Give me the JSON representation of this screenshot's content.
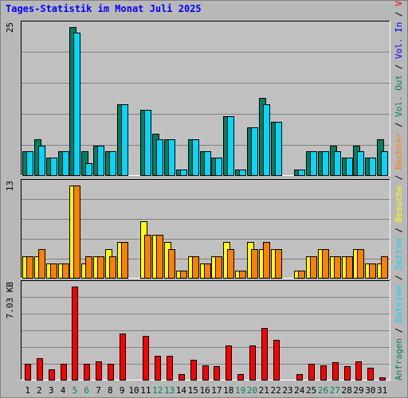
{
  "title": "Tages-Statistik im Monat Juli 2025",
  "colors": {
    "background": "#b8b8b8",
    "plot_background": "#c0c0c0",
    "title": "#0000ff",
    "grid": "#808080",
    "anfragen": "#008060",
    "dateien": "#00d8ff",
    "besuche": "#ffff00",
    "rechner": "#ff8000",
    "volumen": "#ff0000",
    "weekend_label": "#008060"
  },
  "legend_right": [
    {
      "text": "Anfragen",
      "color": "#008060"
    },
    {
      "text": "/",
      "color": "#000000"
    },
    {
      "text": "Dateien",
      "color": "#00d8ff"
    },
    {
      "text": "/",
      "color": "#000000"
    },
    {
      "text": "Seiten",
      "color": "#00d8ff"
    },
    {
      "text": "/",
      "color": "#000000"
    },
    {
      "text": "Besuche",
      "color": "#ffff00"
    },
    {
      "text": "/",
      "color": "#000000"
    },
    {
      "text": "Rechner",
      "color": "#ff8000"
    },
    {
      "text": "/",
      "color": "#000000"
    },
    {
      "text": "Vol. Out",
      "color": "#008060"
    },
    {
      "text": "/",
      "color": "#000000"
    },
    {
      "text": "Vol. In",
      "color": "#0000ff"
    },
    {
      "text": "/",
      "color": "#000000"
    },
    {
      "text": "Volumen",
      "color": "#ff0000"
    }
  ],
  "chart_data": {
    "type": "bar",
    "categories": [
      "1",
      "2",
      "3",
      "4",
      "5",
      "6",
      "7",
      "8",
      "9",
      "10",
      "11",
      "12",
      "13",
      "14",
      "15",
      "16",
      "17",
      "18",
      "19",
      "20",
      "21",
      "22",
      "23",
      "24",
      "25",
      "26",
      "27",
      "28",
      "29",
      "30",
      "31"
    ],
    "weekend_days": [
      "5",
      "6",
      "12",
      "13",
      "19",
      "20",
      "26",
      "27"
    ],
    "panels": [
      {
        "name": "hits",
        "ymax_label": "25",
        "ymax": 25,
        "series": [
          {
            "name": "Anfragen",
            "color": "#008060",
            "values": [
              4,
              6,
              3,
              4,
              25,
              4,
              5,
              4,
              12,
              0,
              11,
              7,
              6,
              1,
              6,
              4,
              3,
              10,
              1,
              8,
              13,
              9,
              0,
              1,
              4,
              4,
              5,
              3,
              5,
              3,
              6
            ]
          },
          {
            "name": "Dateien",
            "color": "#00d8ff",
            "values": [
              4,
              5,
              3,
              4,
              24,
              2,
              5,
              4,
              12,
              0,
              11,
              6,
              6,
              1,
              6,
              4,
              3,
              10,
              1,
              8,
              12,
              9,
              0,
              1,
              4,
              4,
              4,
              3,
              4,
              3,
              4
            ]
          }
        ]
      },
      {
        "name": "visits",
        "ymax_label": "13",
        "ymax": 13,
        "series": [
          {
            "name": "Besuche",
            "color": "#ffff00",
            "values": [
              3,
              3,
              2,
              2,
              13,
              2,
              3,
              4,
              5,
              0,
              8,
              6,
              5,
              1,
              3,
              2,
              3,
              5,
              1,
              5,
              4,
              4,
              0,
              1,
              3,
              4,
              3,
              3,
              4,
              2,
              2
            ]
          },
          {
            "name": "Rechner",
            "color": "#ff8000",
            "values": [
              3,
              4,
              2,
              2,
              13,
              3,
              3,
              3,
              5,
              0,
              6,
              6,
              4,
              1,
              3,
              2,
              3,
              4,
              1,
              4,
              5,
              4,
              0,
              1,
              3,
              4,
              3,
              3,
              4,
              2,
              3
            ]
          }
        ]
      },
      {
        "name": "volume",
        "ymax_label": "7.03 KB",
        "ymax": 7.03,
        "series": [
          {
            "name": "Volumen",
            "color": "#ff0000",
            "values": [
              1.2,
              1.6,
              0.8,
              1.2,
              7.03,
              1.2,
              1.4,
              1.2,
              3.5,
              0,
              3.3,
              1.8,
              1.8,
              0.4,
              1.5,
              1.1,
              1.0,
              2.6,
              0.4,
              2.6,
              3.9,
              3.0,
              0,
              0.4,
              1.2,
              1.1,
              1.3,
              1.0,
              1.4,
              0.9,
              0.2
            ]
          }
        ]
      }
    ]
  }
}
